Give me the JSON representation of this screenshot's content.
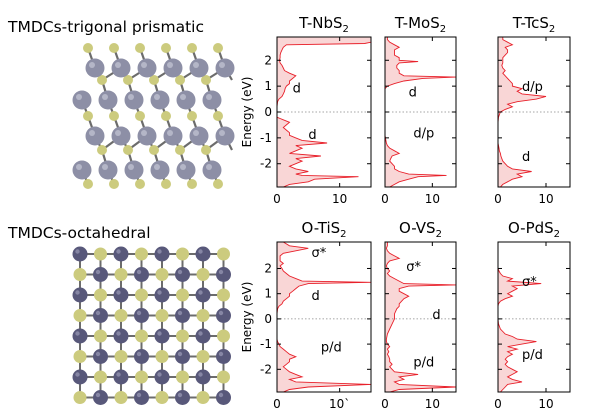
{
  "rows": [
    {
      "label": "TMDCs-trigonal prismatic",
      "structure": "trigonal prismatic lattice, grey metal atoms and yellow sulfur atoms"
    },
    {
      "label": "TMDCs-octahedral",
      "structure": "octahedral lattice, dark grey metal atoms and yellow sulfur atoms"
    }
  ],
  "colors": {
    "fill": "#f9d6d6",
    "line": "#e8202a",
    "metal_light": "#8d8fa6",
    "metal_dark": "#58587a",
    "sulfur": "#cccb7e",
    "bond": "#6c6c6c"
  },
  "chart_data": [
    {
      "type": "area",
      "title_main": "T-NbS",
      "title_sub": "2",
      "ylabel": "Energy (eV)",
      "x_range": [
        0,
        15
      ],
      "x_ticks": [
        "0",
        "10"
      ],
      "y_range": [
        -2.9,
        2.9
      ],
      "y_ticks": [
        "2",
        "1",
        "0",
        "-1",
        "-2"
      ],
      "fermi_line": 0,
      "annotations": [
        {
          "text": "d",
          "x": 2.5,
          "y": 0.95
        },
        {
          "text": "d",
          "x": 5,
          "y": -0.85
        }
      ],
      "energy": [
        -2.9,
        -2.8,
        -2.7,
        -2.6,
        -2.5,
        -2.45,
        -2.4,
        -2.3,
        -2.2,
        -2.1,
        -2.0,
        -1.9,
        -1.8,
        -1.7,
        -1.6,
        -1.5,
        -1.4,
        -1.3,
        -1.2,
        -1.1,
        -1.0,
        -0.9,
        -0.8,
        -0.7,
        -0.6,
        -0.5,
        -0.4,
        -0.3,
        -0.25,
        -0.2,
        0.0,
        0.2,
        0.4,
        0.5,
        0.6,
        0.7,
        0.8,
        0.9,
        1.0,
        1.1,
        1.2,
        1.3,
        1.4,
        1.5,
        1.6,
        1.7,
        1.8,
        1.9,
        2.0,
        2.1,
        2.2,
        2.3,
        2.4,
        2.5,
        2.6,
        2.65,
        2.7,
        2.8,
        2.9
      ],
      "dos": [
        1,
        2,
        5,
        6,
        13,
        4,
        3,
        5,
        3,
        2,
        3,
        4,
        3,
        7,
        2,
        3,
        4,
        3,
        8,
        4,
        3,
        2,
        2,
        1.5,
        1,
        1.5,
        2,
        1,
        0.5,
        0,
        0,
        0,
        0.1,
        0.3,
        0.8,
        1,
        1.2,
        1.3,
        1.5,
        2,
        2,
        2.5,
        3,
        2,
        1.2,
        1,
        0.8,
        0.5,
        0.4,
        0.5,
        0.5,
        0.6,
        0.8,
        1,
        1.5,
        14,
        15,
        15,
        15
      ]
    },
    {
      "type": "area",
      "title_main": "T-MoS",
      "title_sub": "2",
      "x_range": [
        0,
        15
      ],
      "x_ticks": [
        "0",
        "10"
      ],
      "y_range": [
        -2.9,
        2.9
      ],
      "fermi_line": 0,
      "annotations": [
        {
          "text": "d",
          "x": 5,
          "y": 0.8
        },
        {
          "text": "d/p",
          "x": 6,
          "y": -0.8
        }
      ],
      "energy": [
        -2.9,
        -2.8,
        -2.7,
        -2.6,
        -2.5,
        -2.45,
        -2.4,
        -2.3,
        -2.2,
        -2.1,
        -2.0,
        -1.9,
        -1.8,
        -1.7,
        -1.6,
        -1.5,
        -1.4,
        -1.3,
        -1.2,
        -1.1,
        -1.0,
        -0.9,
        -0.8,
        -0.7,
        -0.6,
        -0.5,
        -0.3,
        0.0,
        0.3,
        0.5,
        0.6,
        0.7,
        0.8,
        0.9,
        1.0,
        1.1,
        1.2,
        1.3,
        1.35,
        1.4,
        1.5,
        1.6,
        1.7,
        1.8,
        1.9,
        1.95,
        2.0,
        2.1,
        2.2,
        2.3,
        2.4,
        2.5,
        2.6,
        2.7,
        2.8,
        2.9
      ],
      "dos": [
        1,
        2,
        3,
        5,
        7,
        13,
        5,
        3,
        2,
        2,
        1.5,
        1,
        1.2,
        1.5,
        3,
        2,
        1,
        0.5,
        0.3,
        0.2,
        0.1,
        0,
        0,
        0,
        0,
        0,
        0,
        0,
        0,
        0,
        0,
        0,
        0,
        0,
        0.5,
        2,
        4,
        8,
        15,
        4,
        3,
        3,
        2.5,
        2.5,
        3,
        7,
        3,
        3,
        2,
        2,
        2,
        3,
        2,
        1,
        0.5,
        0.5
      ]
    },
    {
      "type": "area",
      "title_main": "T-TcS",
      "title_sub": "2",
      "x_range": [
        0,
        15
      ],
      "x_ticks": [
        "0",
        "10"
      ],
      "y_range": [
        -2.9,
        2.9
      ],
      "fermi_line": 0,
      "annotations": [
        {
          "text": "d/p",
          "x": 5,
          "y": 1.0
        },
        {
          "text": "d",
          "x": 5,
          "y": -1.7
        }
      ],
      "energy": [
        -2.9,
        -2.8,
        -2.7,
        -2.6,
        -2.5,
        -2.4,
        -2.3,
        -2.2,
        -2.1,
        -2.0,
        -1.9,
        -1.8,
        -1.7,
        -1.6,
        -1.5,
        -1.4,
        -1.3,
        -1.2,
        -1.1,
        -1.0,
        -0.8,
        -0.6,
        -0.4,
        -0.2,
        -0.1,
        0.0,
        0.1,
        0.2,
        0.3,
        0.4,
        0.5,
        0.6,
        0.7,
        0.8,
        0.9,
        1.0,
        1.1,
        1.2,
        1.3,
        1.4,
        1.5,
        1.6,
        1.7,
        1.8,
        1.9,
        2.0,
        2.1,
        2.2,
        2.3,
        2.4,
        2.5,
        2.6,
        2.7,
        2.8,
        2.9
      ],
      "dos": [
        0.5,
        1,
        2,
        3,
        5,
        4,
        7,
        3,
        2,
        1.5,
        1,
        0.8,
        0.6,
        0.5,
        0.3,
        0.2,
        0.1,
        0,
        0,
        0,
        0,
        0,
        0,
        0.1,
        0.3,
        0.5,
        1.5,
        3,
        2,
        4,
        8,
        10,
        5,
        4,
        5,
        3,
        3,
        2.5,
        2,
        1.5,
        1,
        1.5,
        1,
        0.8,
        1,
        1,
        1,
        1.5,
        2,
        2,
        1.5,
        3,
        2,
        1,
        1
      ]
    },
    {
      "type": "area",
      "title_main": "O-TiS",
      "title_sub": "2",
      "ylabel": "Energy (eV)",
      "x_range": [
        0,
        15
      ],
      "x_ticks": [
        "0",
        "10`"
      ],
      "y_range": [
        -2.9,
        3.05
      ],
      "y_ticks": [
        "2",
        "1",
        "0",
        "-1",
        "-2"
      ],
      "fermi_line": 0,
      "annotations": [
        {
          "text": "σ*",
          "x": 5.5,
          "y": 2.65
        },
        {
          "text": "d",
          "x": 5.5,
          "y": 0.95
        },
        {
          "text": "p/d",
          "x": 7,
          "y": -1.1
        }
      ],
      "energy": [
        -2.9,
        -2.8,
        -2.7,
        -2.6,
        -2.5,
        -2.4,
        -2.3,
        -2.2,
        -2.1,
        -2.0,
        -1.9,
        -1.8,
        -1.7,
        -1.6,
        -1.5,
        -1.4,
        -1.3,
        -1.2,
        -1.1,
        -1.0,
        -0.9,
        -0.8,
        -0.6,
        -0.4,
        -0.2,
        0.0,
        0.2,
        0.4,
        0.5,
        0.6,
        0.7,
        0.8,
        0.9,
        1.0,
        1.1,
        1.2,
        1.3,
        1.4,
        1.45,
        1.5,
        1.6,
        1.7,
        1.8,
        1.9,
        2.0,
        2.1,
        2.2,
        2.3,
        2.4,
        2.5,
        2.6,
        2.7,
        2.8,
        2.9,
        3.05
      ],
      "dos": [
        1,
        2,
        5,
        15,
        3,
        2,
        4,
        3,
        2,
        1.5,
        1,
        1.5,
        2,
        2,
        3,
        2,
        1.5,
        1,
        0.5,
        0.3,
        0.1,
        0,
        0,
        0,
        0,
        0,
        0,
        0.1,
        0.3,
        0.8,
        1,
        1.5,
        2,
        2,
        2.5,
        3,
        3.5,
        5,
        15,
        4,
        3,
        2,
        1.5,
        1,
        0.8,
        0.5,
        1,
        0.5,
        0.5,
        0.5,
        1,
        3,
        5,
        2,
        1
      ]
    },
    {
      "type": "area",
      "title_main": "O-VS",
      "title_sub": "2",
      "x_range": [
        0,
        15
      ],
      "x_ticks": [
        "0",
        "10"
      ],
      "y_range": [
        -2.9,
        3.05
      ],
      "fermi_line": 0,
      "annotations": [
        {
          "text": "σ*",
          "x": 4.5,
          "y": 2.1
        },
        {
          "text": "d",
          "x": 10,
          "y": 0.2
        },
        {
          "text": "p/d",
          "x": 6,
          "y": -1.7
        }
      ],
      "energy": [
        -2.9,
        -2.8,
        -2.7,
        -2.6,
        -2.5,
        -2.4,
        -2.3,
        -2.2,
        -2.1,
        -2.0,
        -1.9,
        -1.8,
        -1.7,
        -1.6,
        -1.5,
        -1.4,
        -1.3,
        -1.2,
        -1.1,
        -1.0,
        -0.9,
        -0.8,
        -0.6,
        -0.4,
        -0.2,
        0.0,
        0.2,
        0.4,
        0.5,
        0.6,
        0.7,
        0.8,
        0.9,
        1.0,
        1.1,
        1.2,
        1.3,
        1.35,
        1.4,
        1.5,
        1.6,
        1.7,
        1.8,
        1.9,
        2.0,
        2.1,
        2.2,
        2.3,
        2.4,
        2.5,
        2.6,
        2.7,
        2.8,
        2.9,
        3.05
      ],
      "dos": [
        1,
        3,
        15,
        3,
        2,
        4,
        3,
        7,
        2,
        1.5,
        1,
        1.5,
        1,
        1,
        0.8,
        0.5,
        0.8,
        0.5,
        1,
        0.5,
        0.3,
        0.3,
        0.5,
        1,
        1.5,
        2,
        2,
        2.5,
        3,
        3,
        3.5,
        4,
        5,
        4,
        3,
        3,
        5,
        15,
        4,
        3,
        2,
        1,
        0.5,
        1,
        0.5,
        0.3,
        0.5,
        1,
        3,
        2,
        1,
        0.5,
        0.3,
        0.5,
        0.5
      ]
    },
    {
      "type": "area",
      "title_main": "O-PdS",
      "title_sub": "2",
      "x_range": [
        0,
        15
      ],
      "x_ticks": [
        "0",
        "10"
      ],
      "y_range": [
        -2.9,
        3.05
      ],
      "fermi_line": 0,
      "annotations": [
        {
          "text": "σ*",
          "x": 5,
          "y": 1.5
        },
        {
          "text": "p/d",
          "x": 5,
          "y": -1.4
        }
      ],
      "energy": [
        -2.9,
        -2.8,
        -2.7,
        -2.6,
        -2.5,
        -2.4,
        -2.3,
        -2.2,
        -2.1,
        -2.0,
        -1.9,
        -1.8,
        -1.7,
        -1.6,
        -1.5,
        -1.4,
        -1.3,
        -1.2,
        -1.1,
        -1.0,
        -0.9,
        -0.8,
        -0.7,
        -0.6,
        -0.5,
        -0.4,
        -0.2,
        0.0,
        0.2,
        0.4,
        0.5,
        0.6,
        0.7,
        0.8,
        0.9,
        1.0,
        1.1,
        1.2,
        1.3,
        1.4,
        1.5,
        1.6,
        1.7,
        1.8,
        1.9,
        2.0,
        2.5,
        3.05
      ],
      "dos": [
        0.5,
        1,
        1.5,
        2,
        5,
        3,
        2,
        3,
        4,
        3,
        2,
        1.5,
        2,
        1.5,
        2,
        3,
        2,
        4,
        2,
        5,
        8,
        4,
        3,
        1.5,
        1,
        0.5,
        0.1,
        0,
        0,
        0,
        0,
        0.1,
        0.5,
        1.5,
        3,
        2,
        3,
        4,
        3,
        9,
        2,
        3,
        1,
        0.5,
        0.2,
        0,
        0,
        0
      ]
    }
  ]
}
